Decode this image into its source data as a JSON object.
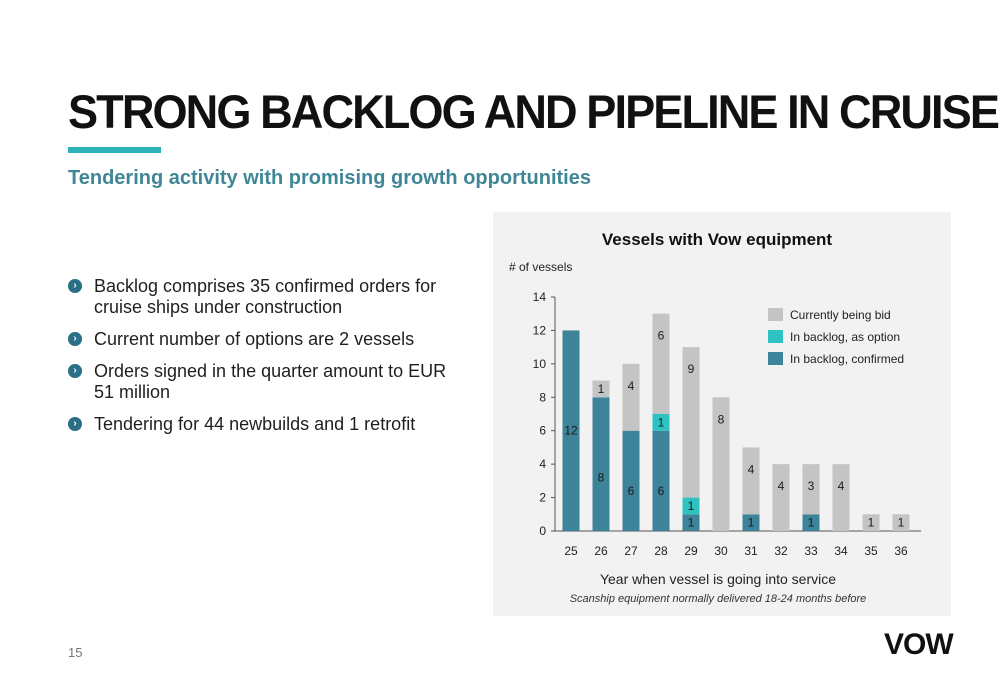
{
  "slide": {
    "title": "STRONG BACKLOG AND PIPELINE IN CRUISE",
    "subtitle": "Tendering activity with promising growth opportunities",
    "page_number": "15",
    "logo": "VOW",
    "bullet_icon": "chevron-right-circle-icon",
    "bullets": [
      "Backlog comprises 35 confirmed orders for cruise ships under construction",
      "Current number of options are 2 vessels",
      "Orders signed in the quarter amount to EUR 51 million",
      "Tendering for 44 newbuilds and 1 retrofit"
    ]
  },
  "chart_data": {
    "type": "bar",
    "stacked": true,
    "title": "Vessels with Vow equipment",
    "ylabel": "# of vessels",
    "xlabel": "Year when vessel is going into service",
    "note": "Scanship equipment normally delivered 18-24 months before",
    "categories": [
      "25",
      "26",
      "27",
      "28",
      "29",
      "30",
      "31",
      "32",
      "33",
      "34",
      "35",
      "36"
    ],
    "ylim": [
      0,
      14
    ],
    "yticks": [
      0,
      2,
      4,
      6,
      8,
      10,
      12,
      14
    ],
    "legend_position": "top-right",
    "series": [
      {
        "name": "In backlog, confirmed",
        "color": "#3d849b",
        "values": [
          12,
          8,
          6,
          6,
          1,
          0,
          1,
          0,
          1,
          0,
          0,
          0
        ]
      },
      {
        "name": "In backlog, as option",
        "color": "#2ec2c0",
        "values": [
          0,
          0,
          0,
          1,
          1,
          0,
          0,
          0,
          0,
          0,
          0,
          0
        ]
      },
      {
        "name": "Currently being bid",
        "color": "#c4c4c4",
        "values": [
          0,
          1,
          4,
          6,
          9,
          8,
          4,
          4,
          3,
          4,
          1,
          1
        ]
      }
    ]
  }
}
